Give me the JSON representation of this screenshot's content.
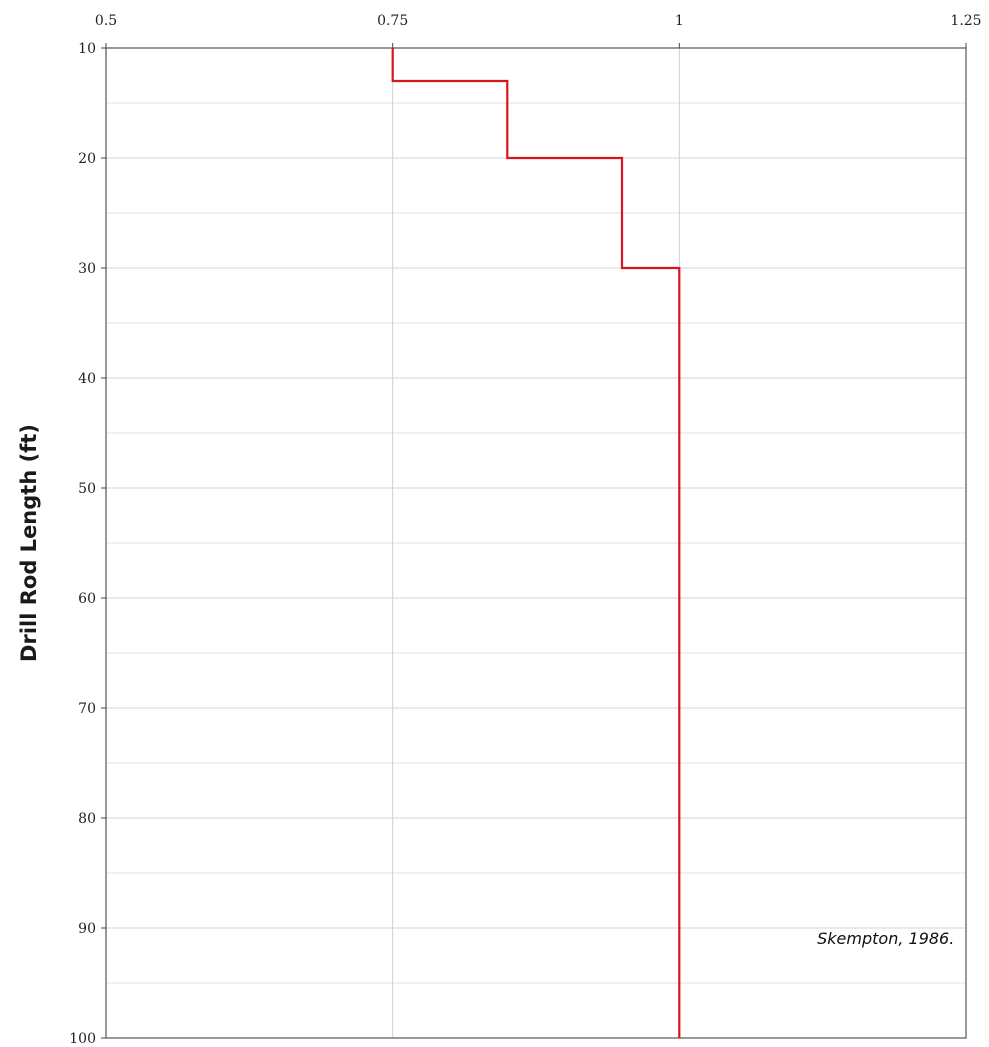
{
  "chart_data": {
    "type": "line",
    "title": "",
    "xlabel": "",
    "ylabel": "Drill Rod Length (ft)",
    "x_axis_position": "top",
    "y_axis_inverted": true,
    "xlim": [
      0.5,
      1.25
    ],
    "ylim": [
      10,
      100
    ],
    "x_ticks": [
      0.5,
      0.75,
      1,
      1.25
    ],
    "x_tick_labels": [
      "0.5",
      "0.75",
      "1",
      "1.25"
    ],
    "y_ticks": [
      10,
      20,
      30,
      40,
      50,
      60,
      70,
      80,
      90,
      100
    ],
    "y_tick_labels": [
      "10",
      "20",
      "30",
      "40",
      "50",
      "60",
      "70",
      "80",
      "90",
      "100"
    ],
    "grid": true,
    "minor_grid_y_step": 5,
    "series": [
      {
        "color": "#d9141b",
        "points": [
          {
            "x": 0.75,
            "y": 10
          },
          {
            "x": 0.75,
            "y": 13
          },
          {
            "x": 0.85,
            "y": 13
          },
          {
            "x": 0.85,
            "y": 20
          },
          {
            "x": 0.95,
            "y": 20
          },
          {
            "x": 0.95,
            "y": 30
          },
          {
            "x": 1.0,
            "y": 30
          },
          {
            "x": 1.0,
            "y": 100
          }
        ]
      }
    ],
    "annotations": [
      {
        "text": "Skempton, 1986.",
        "x": 1.18,
        "y": 91
      }
    ]
  }
}
